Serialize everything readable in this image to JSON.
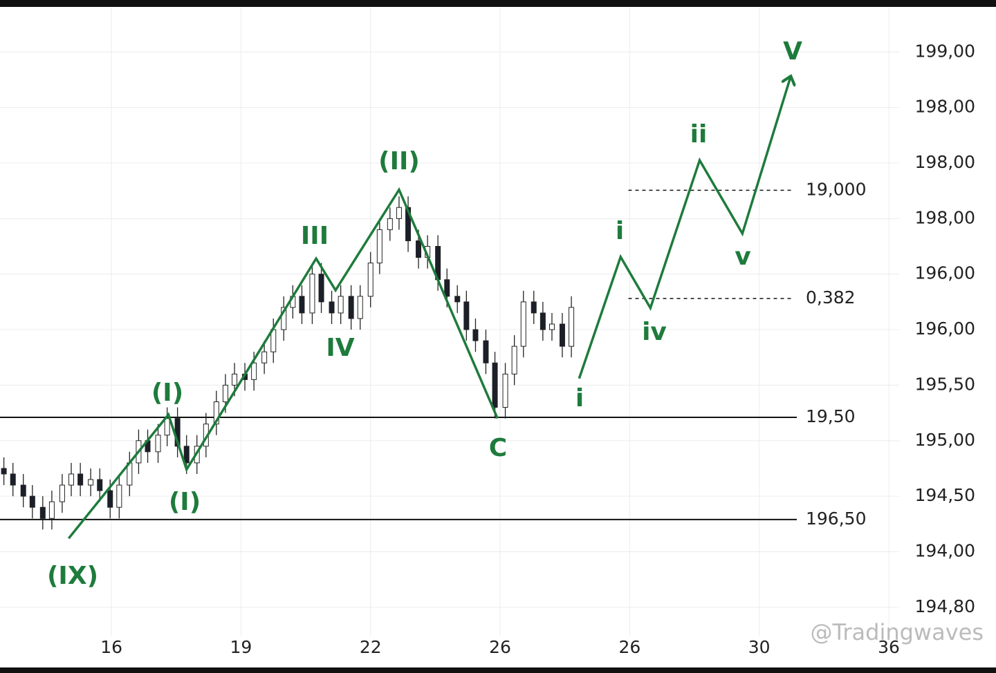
{
  "chart_data": {
    "type": "candlestick",
    "xlim": [
      -0.86,
      6.08
    ],
    "ylim": [
      -0.5,
      10.8
    ],
    "xticks": [
      {
        "value": 0,
        "label": "16"
      },
      {
        "value": 1,
        "label": "19"
      },
      {
        "value": 2,
        "label": "22"
      },
      {
        "value": 3,
        "label": "26"
      },
      {
        "value": 4,
        "label": "26"
      },
      {
        "value": 5,
        "label": "30"
      },
      {
        "value": 6,
        "label": "36"
      }
    ],
    "yticks": [
      {
        "value": 0,
        "label": "194,80"
      },
      {
        "value": 1,
        "label": "194,00"
      },
      {
        "value": 2,
        "label": "194,50"
      },
      {
        "value": 3,
        "label": "195,00"
      },
      {
        "value": 4,
        "label": "195,50"
      },
      {
        "value": 5,
        "label": "196,00"
      },
      {
        "value": 6,
        "label": "196,00"
      },
      {
        "value": 7,
        "label": "198,00"
      },
      {
        "value": 8,
        "label": "198,00"
      },
      {
        "value": 9,
        "label": "198,00"
      },
      {
        "value": 10,
        "label": "199,00"
      }
    ],
    "grid": true,
    "candles": {
      "x": [
        -0.83,
        -0.76,
        -0.68,
        -0.61,
        -0.53,
        -0.46,
        -0.38,
        -0.31,
        -0.24,
        -0.16,
        -0.09,
        -0.01,
        0.06,
        0.14,
        0.21,
        0.28,
        0.36,
        0.43,
        0.51,
        0.58,
        0.66,
        0.73,
        0.81,
        0.88,
        0.95,
        1.03,
        1.1,
        1.18,
        1.25,
        1.33,
        1.4,
        1.47,
        1.55,
        1.62,
        1.7,
        1.77,
        1.85,
        1.92,
        2.0,
        2.07,
        2.15,
        2.22,
        2.29,
        2.37,
        2.44,
        2.52,
        2.59,
        2.67,
        2.74,
        2.81,
        2.89,
        2.96,
        3.04,
        3.11,
        3.18,
        3.26,
        3.33,
        3.4,
        3.48,
        3.55
      ],
      "open": [
        2.5,
        2.4,
        2.2,
        2.0,
        1.8,
        1.6,
        1.9,
        2.2,
        2.4,
        2.2,
        2.3,
        2.1,
        1.8,
        2.2,
        2.6,
        3.0,
        2.8,
        3.1,
        3.4,
        2.9,
        2.6,
        2.9,
        3.3,
        3.7,
        4.0,
        4.2,
        4.1,
        4.4,
        4.6,
        5.0,
        5.4,
        5.6,
        5.3,
        6.0,
        5.5,
        5.3,
        5.6,
        5.2,
        5.6,
        6.2,
        6.8,
        7.0,
        7.2,
        6.6,
        6.3,
        6.5,
        5.9,
        5.6,
        5.5,
        5.0,
        4.8,
        4.4,
        3.6,
        4.2,
        4.7,
        5.5,
        5.3,
        5.0,
        5.1,
        4.7
      ],
      "high": [
        2.7,
        2.6,
        2.4,
        2.2,
        2.0,
        2.1,
        2.4,
        2.6,
        2.6,
        2.5,
        2.5,
        2.3,
        2.4,
        2.8,
        3.2,
        3.2,
        3.3,
        3.6,
        3.6,
        3.1,
        3.1,
        3.5,
        3.9,
        4.2,
        4.4,
        4.4,
        4.6,
        4.8,
        5.2,
        5.6,
        5.8,
        5.8,
        6.2,
        6.2,
        5.7,
        5.8,
        5.8,
        5.8,
        6.4,
        7.0,
        7.2,
        7.4,
        7.4,
        6.8,
        6.7,
        6.7,
        6.1,
        5.8,
        5.7,
        5.2,
        5.0,
        4.6,
        4.4,
        4.9,
        5.7,
        5.7,
        5.5,
        5.3,
        5.3,
        5.6
      ],
      "low": [
        2.2,
        2.0,
        1.8,
        1.6,
        1.4,
        1.4,
        1.7,
        2.0,
        2.0,
        2.0,
        1.9,
        1.6,
        1.6,
        2.0,
        2.4,
        2.6,
        2.6,
        2.9,
        2.7,
        2.4,
        2.4,
        2.7,
        3.1,
        3.5,
        3.8,
        3.9,
        3.9,
        4.2,
        4.4,
        4.8,
        5.2,
        5.1,
        5.1,
        5.3,
        5.1,
        5.1,
        5.0,
        5.0,
        5.4,
        6.0,
        6.6,
        6.8,
        6.4,
        6.1,
        6.1,
        5.7,
        5.4,
        5.3,
        4.8,
        4.6,
        4.2,
        3.4,
        3.4,
        4.0,
        4.5,
        5.1,
        4.8,
        4.8,
        4.5,
        4.5
      ],
      "close": [
        2.4,
        2.2,
        2.0,
        1.8,
        1.6,
        1.9,
        2.2,
        2.4,
        2.2,
        2.3,
        2.1,
        1.8,
        2.2,
        2.6,
        3.0,
        2.8,
        3.1,
        3.4,
        2.9,
        2.6,
        2.9,
        3.3,
        3.7,
        4.0,
        4.2,
        4.1,
        4.4,
        4.6,
        5.0,
        5.4,
        5.6,
        5.3,
        6.0,
        5.5,
        5.3,
        5.6,
        5.2,
        5.6,
        6.2,
        6.8,
        7.0,
        7.2,
        6.6,
        6.3,
        6.5,
        5.9,
        5.6,
        5.5,
        5.0,
        4.8,
        4.4,
        3.6,
        4.2,
        4.7,
        5.5,
        5.3,
        5.0,
        5.1,
        4.7,
        5.4
      ]
    },
    "waves": [
      {
        "color": "#1e7b3c",
        "x": [
          -0.33,
          0.44,
          0.58,
          1.58,
          1.73,
          2.22,
          2.98
        ],
        "values": [
          1.24,
          3.47,
          2.48,
          6.28,
          5.71,
          7.52,
          3.4
        ]
      },
      {
        "color": "#1e7b3c",
        "arrow": true,
        "x": [
          3.61,
          3.93,
          4.16,
          4.54,
          4.87,
          5.24
        ],
        "values": [
          4.12,
          6.31,
          5.39,
          8.05,
          6.73,
          9.54
        ]
      }
    ],
    "levels": [
      {
        "value": 3.42,
        "label": "19,50",
        "style": "solid",
        "xrange": [
          -0.86,
          5.29
        ]
      },
      {
        "value": 1.58,
        "label": "196,50",
        "style": "solid",
        "xrange": [
          -0.86,
          5.29
        ]
      },
      {
        "value": 7.51,
        "label": "19,000",
        "style": "dashed",
        "xrange": [
          3.99,
          5.27
        ]
      },
      {
        "value": 5.56,
        "label": "0,382",
        "style": "dashed",
        "xrange": [
          3.99,
          5.27
        ]
      }
    ],
    "annotations": [
      "(IX)",
      "(I)",
      "(I)",
      "III",
      "IV",
      "(II)",
      "C",
      "i",
      "i",
      "iv",
      "ii",
      "v",
      "V"
    ],
    "watermark": "@Tradingwaves"
  }
}
